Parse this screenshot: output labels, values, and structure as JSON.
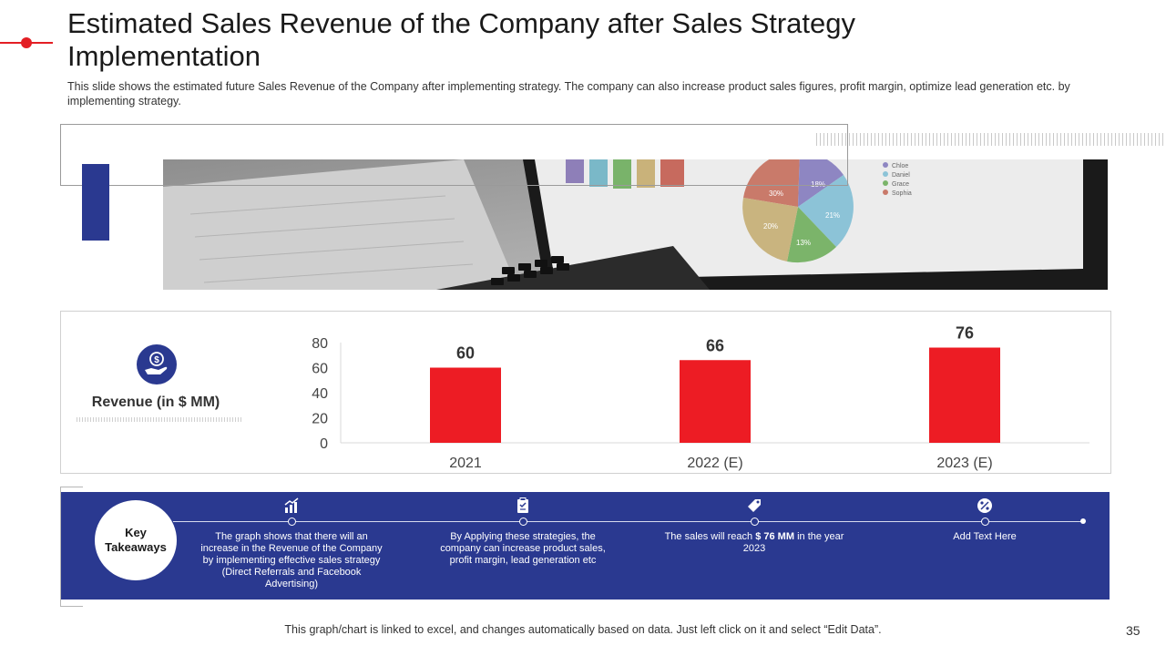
{
  "slide": {
    "title": "Estimated Sales Revenue of the Company after Sales Strategy Implementation",
    "subtitle": "This slide shows the estimated future Sales Revenue of the Company after implementing strategy. The company can also increase product sales figures, profit margin, optimize lead generation etc. by implementing strategy.",
    "footer": "This graph/chart is linked to excel, and changes automatically based on data. Just left click on it and select “Edit Data”.",
    "page_number": "35",
    "accent_color": "#e31e24",
    "brand_blue": "#2a3990"
  },
  "metric": {
    "label": "Revenue (in $ MM)",
    "icon": "dollar-hand-icon"
  },
  "photo": {
    "pie_labels": [
      "30%",
      "18%",
      "21%",
      "13%",
      "20%"
    ],
    "legend": [
      "Chloe",
      "Daniel",
      "Grace",
      "Sophia"
    ]
  },
  "chart_data": {
    "type": "bar",
    "categories": [
      "2021",
      "2022 (E)",
      "2023 (E)"
    ],
    "values": [
      60,
      66,
      76
    ],
    "data_labels": [
      "60",
      "66",
      "76"
    ],
    "yticks": [
      "0",
      "20",
      "40",
      "60",
      "80"
    ],
    "ylim": [
      0,
      80
    ],
    "bar_color": "#ed1c24",
    "grid": false,
    "legend": "none"
  },
  "takeaways": {
    "heading": "Key Takeaways",
    "items": [
      {
        "icon": "growth-chart-icon",
        "text": "The graph shows that there will an increase in the Revenue of the Company by implementing effective sales strategy (Direct Referrals and Facebook Advertising)"
      },
      {
        "icon": "clipboard-icon",
        "text": "By Applying these strategies, the company can increase product sales, profit margin, lead generation etc"
      },
      {
        "icon": "price-tag-icon",
        "text_before": "The sales will reach ",
        "text_bold": "$ 76 MM",
        "text_after": " in the year 2023"
      },
      {
        "icon": "percent-badge-icon",
        "text": "Add Text Here"
      }
    ]
  }
}
